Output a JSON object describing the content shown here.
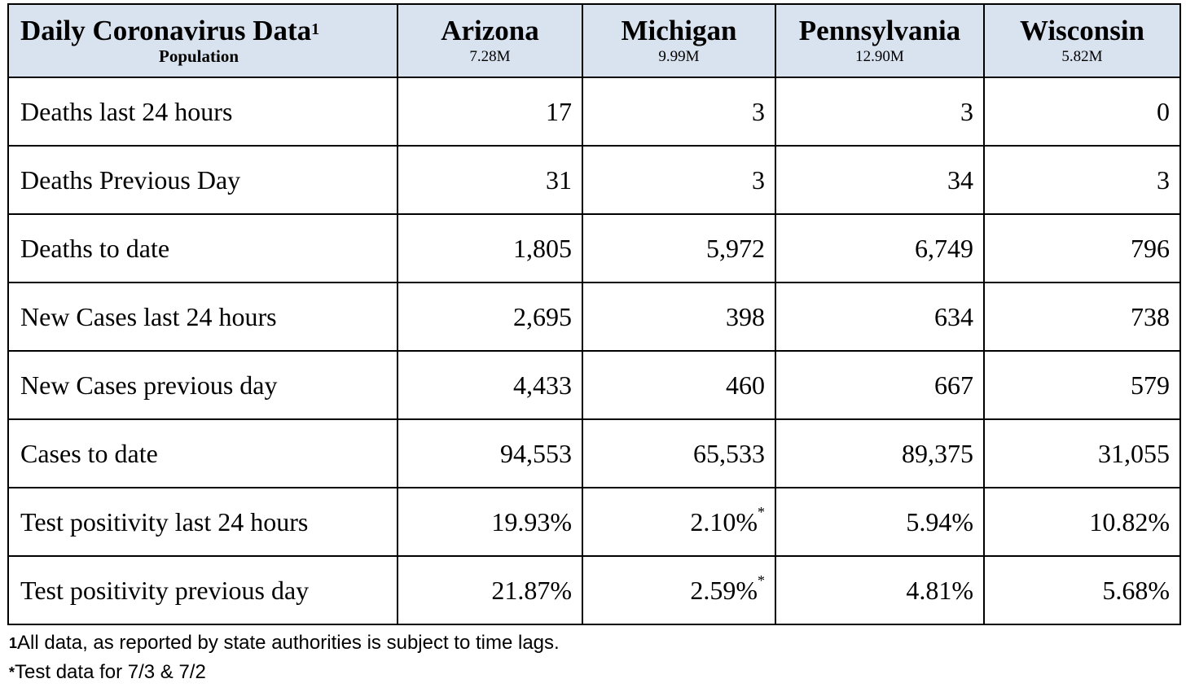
{
  "table": {
    "title": "Daily Coronavirus Data",
    "title_note_mark": "1",
    "population_label": "Population",
    "states": [
      {
        "name": "Arizona",
        "population": "7.28M"
      },
      {
        "name": "Michigan",
        "population": "9.99M"
      },
      {
        "name": "Pennsylvania",
        "population": "12.90M"
      },
      {
        "name": "Wisconsin",
        "population": "5.82M"
      }
    ],
    "rows": [
      {
        "label": "Deaths last 24 hours",
        "values": [
          "17",
          "3",
          "3",
          "0"
        ],
        "marks": [
          "",
          "",
          "",
          ""
        ]
      },
      {
        "label": "Deaths Previous Day",
        "values": [
          "31",
          "3",
          "34",
          "3"
        ],
        "marks": [
          "",
          "",
          "",
          ""
        ]
      },
      {
        "label": "Deaths to date",
        "values": [
          "1,805",
          "5,972",
          "6,749",
          "796"
        ],
        "marks": [
          "",
          "",
          "",
          ""
        ]
      },
      {
        "label": "New Cases last 24 hours",
        "values": [
          "2,695",
          "398",
          "634",
          "738"
        ],
        "marks": [
          "",
          "",
          "",
          ""
        ]
      },
      {
        "label": "New Cases previous day",
        "values": [
          "4,433",
          "460",
          "667",
          "579"
        ],
        "marks": [
          "",
          "",
          "",
          ""
        ]
      },
      {
        "label": "Cases to date",
        "values": [
          "94,553",
          "65,533",
          "89,375",
          "31,055"
        ],
        "marks": [
          "",
          "",
          "",
          ""
        ]
      },
      {
        "label": "Test positivity last 24 hours",
        "values": [
          "19.93%",
          "2.10%",
          "5.94%",
          "10.82%"
        ],
        "marks": [
          "",
          "*",
          "",
          ""
        ]
      },
      {
        "label": "Test positivity previous day",
        "values": [
          "21.87%",
          "2.59%",
          "4.81%",
          "5.68%"
        ],
        "marks": [
          "",
          "*",
          "",
          ""
        ]
      }
    ]
  },
  "notes": [
    {
      "symbol": "1",
      "text": "All data, as reported by state authorities is subject to time lags."
    },
    {
      "symbol": "*",
      "text": "Test data for 7/3 & 7/2"
    }
  ],
  "colors": {
    "header_background": "#d9e2ef",
    "border": "#000000"
  }
}
